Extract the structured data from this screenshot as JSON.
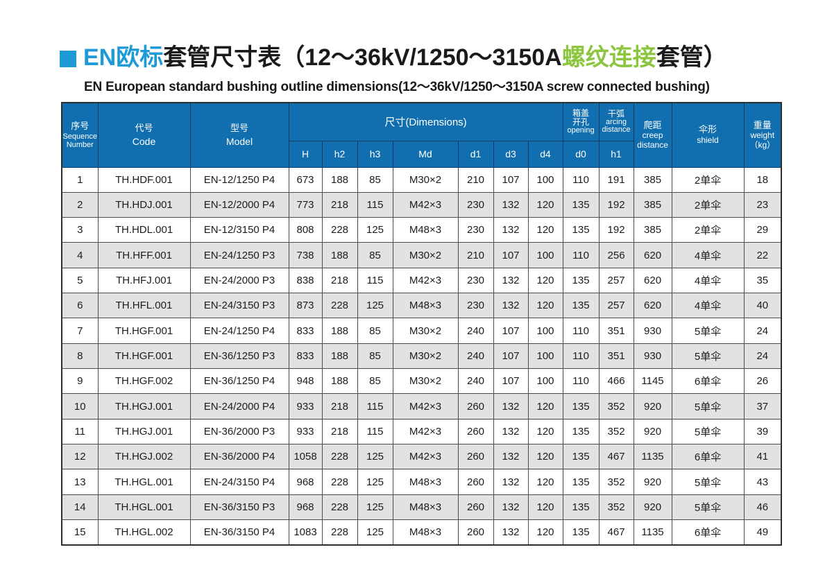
{
  "icons": {
    "title_bullet": "square"
  },
  "colors": {
    "header_blue": "#116fb0",
    "title_blue": "#1e9bd7",
    "accent_green": "#8cc63f",
    "row_alt_gray": "#e2e2e2",
    "text_dark": "#1a1a1a"
  },
  "title": {
    "part_en": "EN欧标",
    "part_mid": "套管尺寸表（12～36kV/1250～3150A",
    "part_thread": "螺纹连接",
    "part_tail": "套管）",
    "subtitle": "EN European standard bushing outline dimensions(12～36kV/1250～3150A screw connected bushing)"
  },
  "table": {
    "group_headers": {
      "seq_zh": "序号",
      "seq_en": "Sequence\nNumber",
      "code_zh": "代号",
      "code_en": "Code",
      "model_zh": "型号",
      "model_en": "Model",
      "dimensions": "尺寸(Dimensions)",
      "opening_zh": "箱盖\n开孔",
      "opening_en": "opening",
      "arcing_zh": "干弧",
      "arcing_en": "arcing\ndistance",
      "creep_zh": "爬距",
      "creep_en": "creep\ndistance",
      "shield_zh": "伞形",
      "shield_en": "shield",
      "weight_zh": "重量",
      "weight_en": "weight\n（kg）"
    },
    "sub_headers": [
      "H",
      "h2",
      "h3",
      "Md",
      "d1",
      "d3",
      "d4",
      "d0",
      "h1"
    ],
    "rows": [
      [
        "1",
        "TH.HDF.001",
        "EN-12/1250 P4",
        "673",
        "188",
        "85",
        "M30×2",
        "210",
        "107",
        "100",
        "110",
        "191",
        "385",
        "2单伞",
        "18"
      ],
      [
        "2",
        "TH.HDJ.001",
        "EN-12/2000 P4",
        "773",
        "218",
        "115",
        "M42×3",
        "230",
        "132",
        "120",
        "135",
        "192",
        "385",
        "2单伞",
        "23"
      ],
      [
        "3",
        "TH.HDL.001",
        "EN-12/3150 P4",
        "808",
        "228",
        "125",
        "M48×3",
        "230",
        "132",
        "120",
        "135",
        "192",
        "385",
        "2单伞",
        "29"
      ],
      [
        "4",
        "TH.HFF.001",
        "EN-24/1250 P3",
        "738",
        "188",
        "85",
        "M30×2",
        "210",
        "107",
        "100",
        "110",
        "256",
        "620",
        "4单伞",
        "22"
      ],
      [
        "5",
        "TH.HFJ.001",
        "EN-24/2000 P3",
        "838",
        "218",
        "115",
        "M42×3",
        "230",
        "132",
        "120",
        "135",
        "257",
        "620",
        "4单伞",
        "35"
      ],
      [
        "6",
        "TH.HFL.001",
        "EN-24/3150 P3",
        "873",
        "228",
        "125",
        "M48×3",
        "230",
        "132",
        "120",
        "135",
        "257",
        "620",
        "4单伞",
        "40"
      ],
      [
        "7",
        "TH.HGF.001",
        "EN-24/1250 P4",
        "833",
        "188",
        "85",
        "M30×2",
        "240",
        "107",
        "100",
        "110",
        "351",
        "930",
        "5单伞",
        "24"
      ],
      [
        "8",
        "TH.HGF.001",
        "EN-36/1250 P3",
        "833",
        "188",
        "85",
        "M30×2",
        "240",
        "107",
        "100",
        "110",
        "351",
        "930",
        "5单伞",
        "24"
      ],
      [
        "9",
        "TH.HGF.002",
        "EN-36/1250 P4",
        "948",
        "188",
        "85",
        "M30×2",
        "240",
        "107",
        "100",
        "110",
        "466",
        "1145",
        "6单伞",
        "26"
      ],
      [
        "10",
        "TH.HGJ.001",
        "EN-24/2000 P4",
        "933",
        "218",
        "115",
        "M42×3",
        "260",
        "132",
        "120",
        "135",
        "352",
        "920",
        "5单伞",
        "37"
      ],
      [
        "11",
        "TH.HGJ.001",
        "EN-36/2000 P3",
        "933",
        "218",
        "115",
        "M42×3",
        "260",
        "132",
        "120",
        "135",
        "352",
        "920",
        "5单伞",
        "39"
      ],
      [
        "12",
        "TH.HGJ.002",
        "EN-36/2000 P4",
        "1058",
        "228",
        "125",
        "M42×3",
        "260",
        "132",
        "120",
        "135",
        "467",
        "1135",
        "6单伞",
        "41"
      ],
      [
        "13",
        "TH.HGL.001",
        "EN-24/3150 P4",
        "968",
        "228",
        "125",
        "M48×3",
        "260",
        "132",
        "120",
        "135",
        "352",
        "920",
        "5单伞",
        "43"
      ],
      [
        "14",
        "TH.HGL.001",
        "EN-36/3150 P3",
        "968",
        "228",
        "125",
        "M48×3",
        "260",
        "132",
        "120",
        "135",
        "352",
        "920",
        "5单伞",
        "46"
      ],
      [
        "15",
        "TH.HGL.002",
        "EN-36/3150 P4",
        "1083",
        "228",
        "125",
        "M48×3",
        "260",
        "132",
        "120",
        "135",
        "467",
        "1135",
        "6单伞",
        "49"
      ]
    ]
  }
}
